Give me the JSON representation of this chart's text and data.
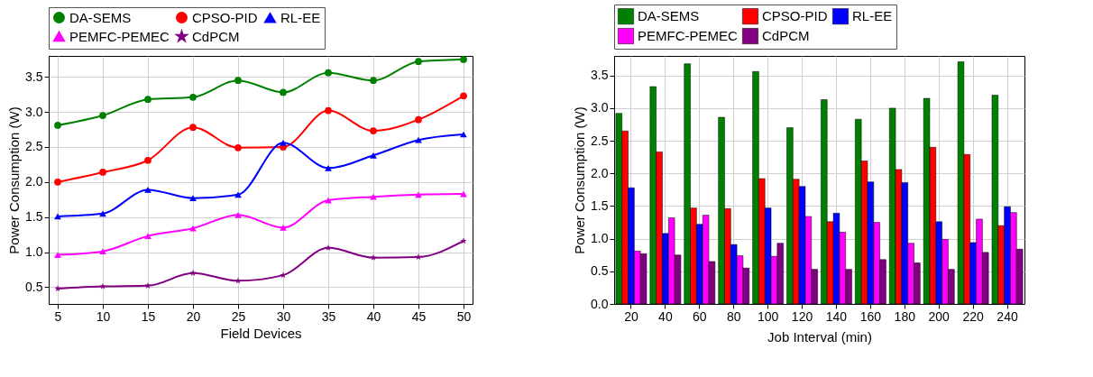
{
  "chart_data": [
    {
      "type": "line",
      "xlabel": "Field Devices",
      "ylabel": "Power Consumption (W)",
      "x": [
        5,
        10,
        15,
        20,
        25,
        30,
        35,
        40,
        45,
        50
      ],
      "xlim": [
        4,
        51
      ],
      "xticks": [
        5,
        10,
        15,
        20,
        25,
        30,
        35,
        40,
        45,
        50
      ],
      "ylim": [
        0.26,
        3.8
      ],
      "yticks": [
        0.5,
        {
          "value": 1,
          "label": "1.0"
        },
        1.5,
        {
          "value": 2,
          "label": "2.0"
        },
        2.5,
        {
          "value": 3,
          "label": "3.0"
        },
        3.5
      ],
      "line_style": "solid",
      "grid": true,
      "legend": "top",
      "series": [
        {
          "name": "DA-SEMS",
          "color": "#008000",
          "marker": "circle",
          "values": [
            2.81,
            2.95,
            3.18,
            3.21,
            3.45,
            3.28,
            3.56,
            3.45,
            3.72,
            3.75
          ]
        },
        {
          "name": "CPSO-PID",
          "color": "#ff0000",
          "marker": "circle",
          "values": [
            2.0,
            2.14,
            2.31,
            2.78,
            2.49,
            2.5,
            3.02,
            2.73,
            2.89,
            3.23
          ]
        },
        {
          "name": "RL-EE",
          "color": "#0000ff",
          "marker": "triangle",
          "values": [
            1.51,
            1.55,
            1.89,
            1.77,
            1.82,
            2.56,
            2.2,
            2.38,
            2.6,
            2.68
          ]
        },
        {
          "name": "PEMFC-PEMEC",
          "color": "#ff00ff",
          "marker": "triangle",
          "values": [
            0.96,
            1.01,
            1.23,
            1.34,
            1.53,
            1.35,
            1.74,
            1.79,
            1.82,
            1.83
          ]
        },
        {
          "name": "CdPCM",
          "color": "#800080",
          "marker": "star",
          "values": [
            0.48,
            0.51,
            0.52,
            0.7,
            0.59,
            0.67,
            1.06,
            0.92,
            0.93,
            1.16
          ]
        }
      ]
    },
    {
      "type": "bar",
      "xlabel": "Job Interval (min)",
      "ylabel": "Power Consumption (W)",
      "categories": [
        "20",
        "40",
        "60",
        "80",
        "100",
        "120",
        "140",
        "160",
        "180",
        "200",
        "220",
        "240"
      ],
      "ylim": [
        0,
        3.8
      ],
      "yticks": [
        {
          "value": 0,
          "label": "0.0"
        },
        0.5,
        {
          "value": 1,
          "label": "1.0"
        },
        1.5,
        {
          "value": 2,
          "label": "2.0"
        },
        2.5,
        {
          "value": 3,
          "label": "3.0"
        },
        3.5
      ],
      "grid": true,
      "legend": "top",
      "series": [
        {
          "name": "DA-SEMS",
          "color": "#008000",
          "values": [
            2.92,
            3.33,
            3.68,
            2.86,
            3.56,
            2.7,
            3.13,
            2.83,
            3.0,
            3.15,
            3.71,
            3.2
          ]
        },
        {
          "name": "CPSO-PID",
          "color": "#ff0000",
          "values": [
            2.65,
            2.33,
            1.47,
            1.46,
            1.92,
            1.91,
            1.26,
            2.19,
            2.06,
            2.4,
            2.29,
            1.2
          ]
        },
        {
          "name": "RL-EE",
          "color": "#0000ff",
          "values": [
            1.78,
            1.08,
            1.22,
            0.91,
            1.47,
            1.8,
            1.39,
            1.87,
            1.86,
            1.26,
            0.94,
            1.49
          ]
        },
        {
          "name": "PEMFC-PEMEC",
          "color": "#ff00ff",
          "values": [
            0.81,
            1.32,
            1.36,
            0.74,
            0.73,
            1.34,
            1.1,
            1.25,
            0.93,
            0.99,
            1.3,
            1.4
          ]
        },
        {
          "name": "CdPCM",
          "color": "#800080",
          "values": [
            0.77,
            0.75,
            0.65,
            0.55,
            0.93,
            0.53,
            0.53,
            0.68,
            0.63,
            0.53,
            0.79,
            0.84
          ]
        }
      ]
    }
  ]
}
